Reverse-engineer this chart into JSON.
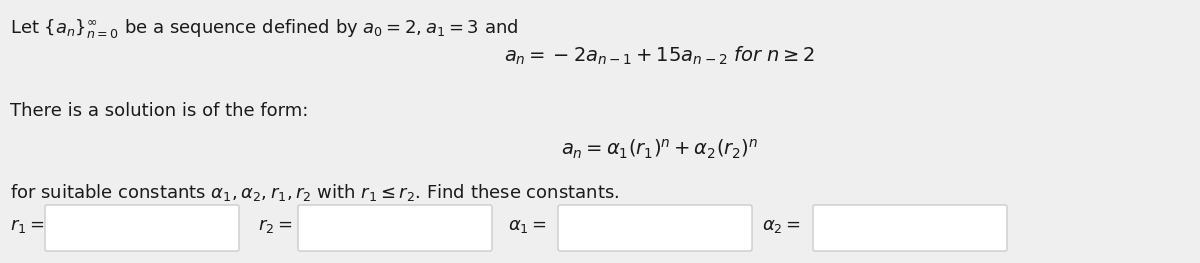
{
  "bg_color": "#efefef",
  "text_color": "#1a1a1a",
  "box_color": "#ffffff",
  "box_edge_color": "#cccccc",
  "line1": "Let $\\{a_n\\}_{n=0}^{\\infty}$ be a sequence defined by $a_0 = 2, a_1 = 3$ and",
  "line2": "$a_n = -2a_{n-1} + 15a_{n-2}$ for $n \\geq 2$",
  "line3": "There is a solution is of the form:",
  "line4": "$a_n = \\alpha_1(r_1)^n + \\alpha_2(r_2)^n$",
  "line5": "for suitable constants $\\alpha_1, \\alpha_2, r_1, r_2$ with $r_1 \\leq r_2$. Find these constants.",
  "label_r1": "$r_1 =$",
  "label_r2": "$r_2 =$",
  "label_a1": "$\\alpha_1 =$",
  "label_a2": "$\\alpha_2 =$",
  "fig_width": 12.0,
  "fig_height": 2.63,
  "dpi": 100,
  "fontsize": 13,
  "fontsize_eq": 14
}
